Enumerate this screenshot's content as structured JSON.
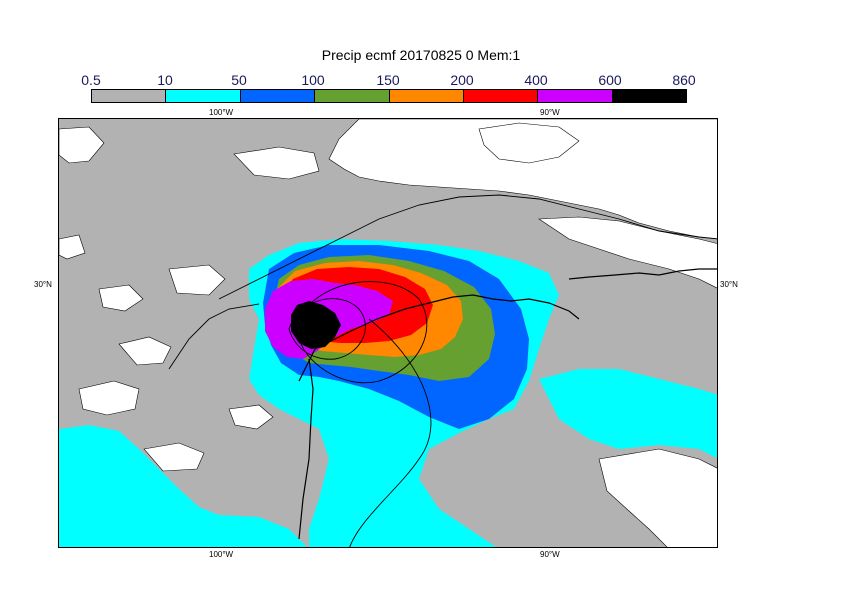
{
  "title": "Precip ecmf 20170825 0 Mem:1",
  "legend": {
    "levels": [
      "0.5",
      "10",
      "50",
      "100",
      "150",
      "200",
      "400",
      "600",
      "860"
    ],
    "colors": [
      "#b2b2b2",
      "#00ffff",
      "#0066ff",
      "#66a030",
      "#ff8800",
      "#ff0000",
      "#cc00ff",
      "#000000"
    ]
  },
  "axes": {
    "lon_top_left": "100°W",
    "lon_top_right": "90°W",
    "lon_bottom_left": "100°W",
    "lon_bottom_right": "90°W",
    "lat_left": "30°N",
    "lat_right": "30°N"
  },
  "map_colors": {
    "background_sea": "#b2b2b2",
    "no_precip": "#ffffff",
    "coast": "#000000"
  }
}
